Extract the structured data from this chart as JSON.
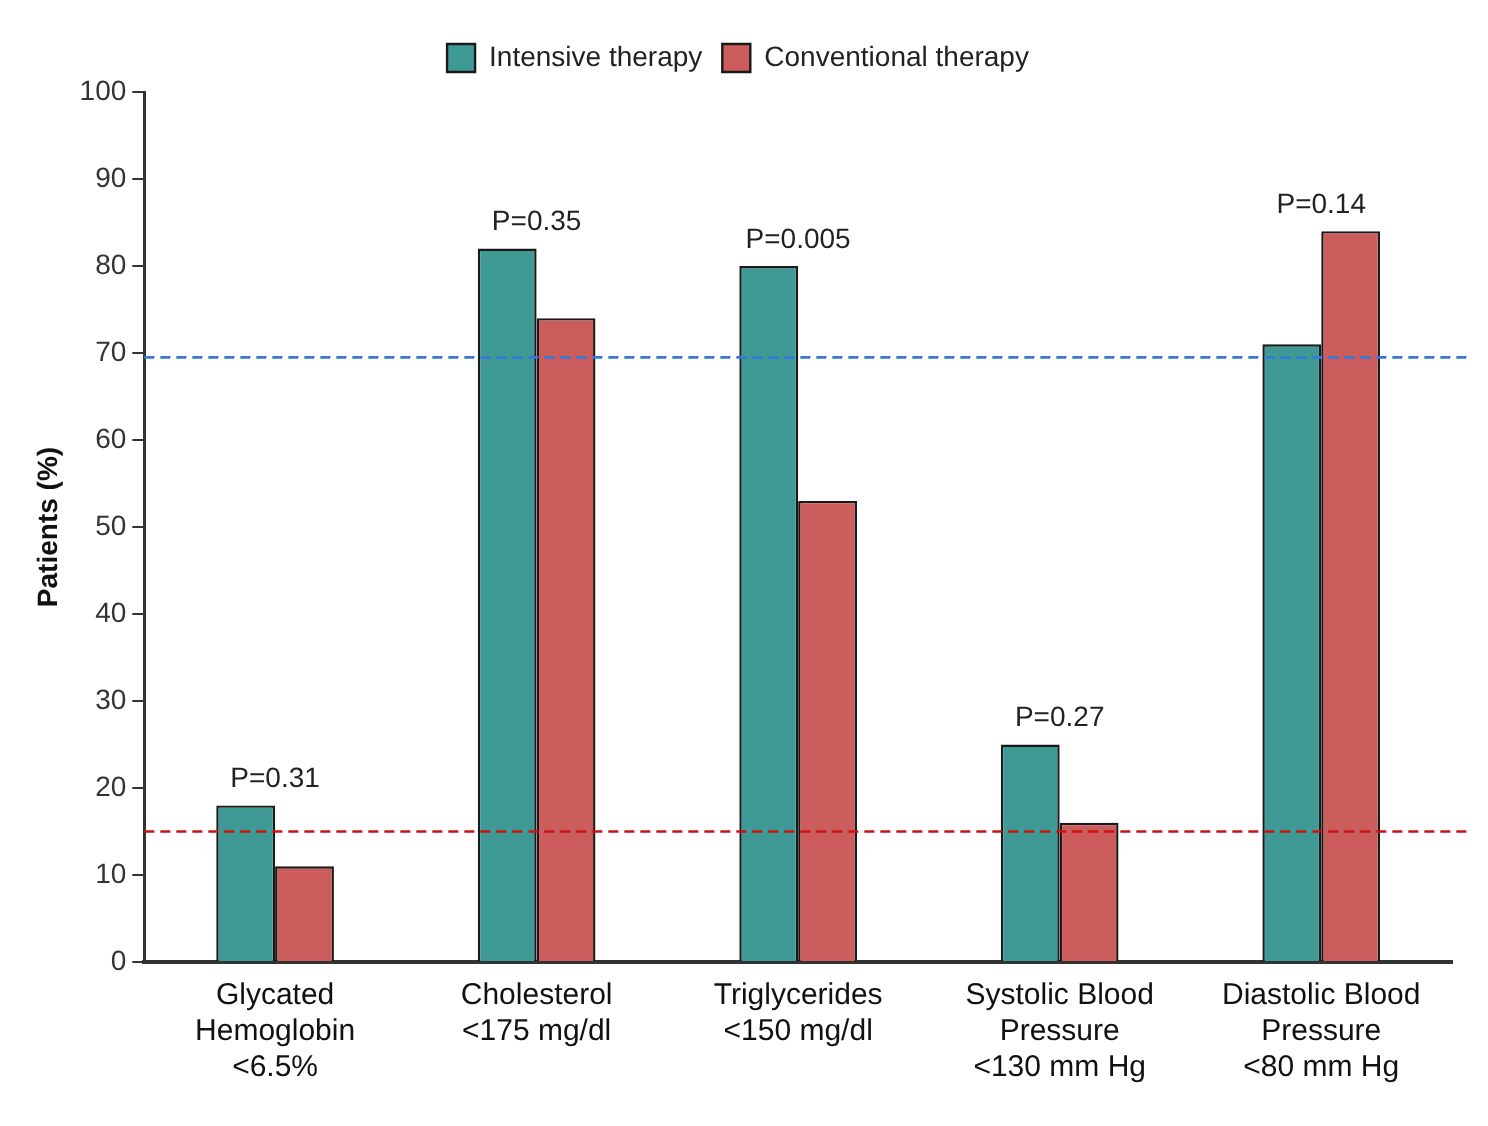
{
  "chart_data": {
    "type": "bar",
    "ylabel": "Patients (%)",
    "categories": [
      "Glycated\nHemoglobin\n<6.5%",
      "Cholesterol\n<175 mg/dl",
      "Triglycerides\n<150 mg/dl",
      "Systolic Blood\nPressure\n<130 mm Hg",
      "Diastolic Blood\nPressure\n<80 mm Hg"
    ],
    "series": [
      {
        "name": "Intensive therapy",
        "color": "#3f9a96",
        "values": [
          18,
          82,
          80,
          25,
          71
        ]
      },
      {
        "name": "Conventional therapy",
        "color": "#cd5c5c",
        "values": [
          11,
          74,
          53,
          16,
          84
        ]
      }
    ],
    "ylim": [
      0,
      100
    ],
    "yticks": [
      0,
      10,
      20,
      30,
      40,
      50,
      60,
      70,
      80,
      90,
      100
    ],
    "grid": false,
    "legend": "top",
    "ref_lines": [
      {
        "axis": "y",
        "value": 69.5,
        "color": "#3a78d8",
        "line_style": "dashed"
      },
      {
        "axis": "y",
        "value": 15,
        "color": "#d01010",
        "line_style": "dashed"
      }
    ],
    "annotations": [
      {
        "text": "P=0.31",
        "x": "Glycated\nHemoglobin\n<6.5%",
        "y": 18
      },
      {
        "text": "P=0.35",
        "x": "Cholesterol\n<175 mg/dl",
        "y": 82
      },
      {
        "text": "P=0.005",
        "x": "Triglycerides\n<150 mg/dl",
        "y": 80
      },
      {
        "text": "P=0.27",
        "x": "Systolic Blood\nPressure\n<130 mm Hg",
        "y": 25
      },
      {
        "text": "P=0.14",
        "x": "Diastolic Blood\nPressure\n<80 mm Hg",
        "y": 84
      }
    ]
  }
}
